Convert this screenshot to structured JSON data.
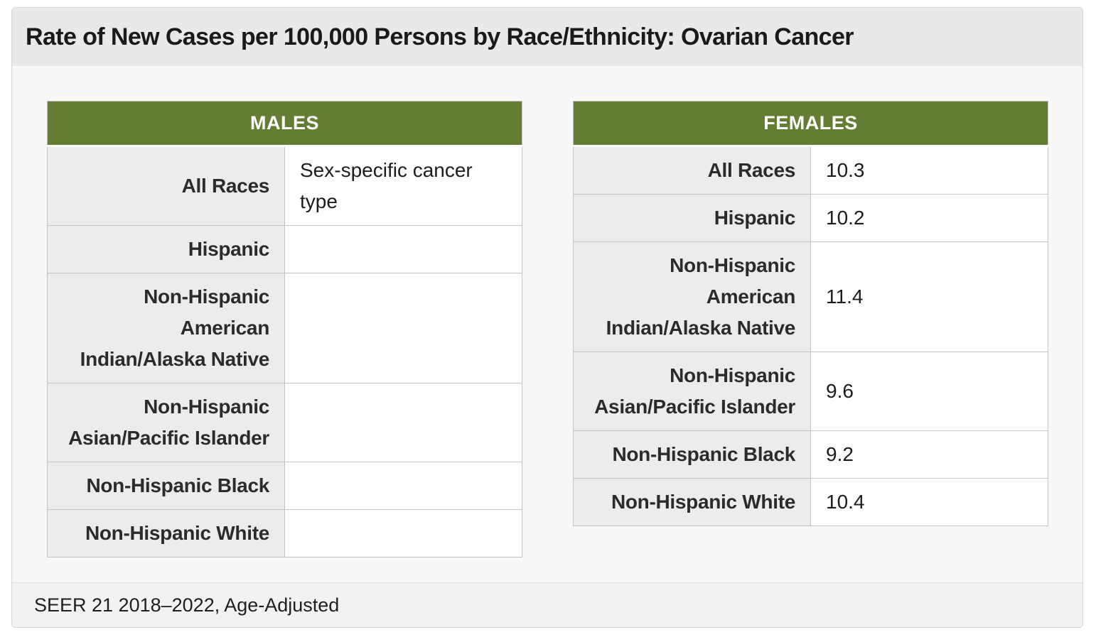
{
  "title": "Rate of New Cases per 100,000 Persons by Race/Ethnicity: Ovarian Cancer",
  "males": {
    "header": "MALES",
    "rows": [
      {
        "race": "All Races",
        "value": "Sex-specific cancer type"
      },
      {
        "race": "Hispanic",
        "value": ""
      },
      {
        "race": "Non-Hispanic American Indian/Alaska Native",
        "value": ""
      },
      {
        "race": "Non-Hispanic Asian/Pacific Islander",
        "value": ""
      },
      {
        "race": "Non-Hispanic Black",
        "value": ""
      },
      {
        "race": "Non-Hispanic White",
        "value": ""
      }
    ]
  },
  "females": {
    "header": "FEMALES",
    "rows": [
      {
        "race": "All Races",
        "value": "10.3"
      },
      {
        "race": "Hispanic",
        "value": "10.2"
      },
      {
        "race": "Non-Hispanic American Indian/Alaska Native",
        "value": "11.4"
      },
      {
        "race": "Non-Hispanic Asian/Pacific Islander",
        "value": "9.6"
      },
      {
        "race": "Non-Hispanic Black",
        "value": "9.2"
      },
      {
        "race": "Non-Hispanic White",
        "value": "10.4"
      }
    ]
  },
  "footer": "SEER 21 2018–2022, Age-Adjusted",
  "colors": {
    "header_green": "#637e32",
    "label_cell_bg": "#ececec",
    "title_bar_bg": "#e9e9e9"
  }
}
